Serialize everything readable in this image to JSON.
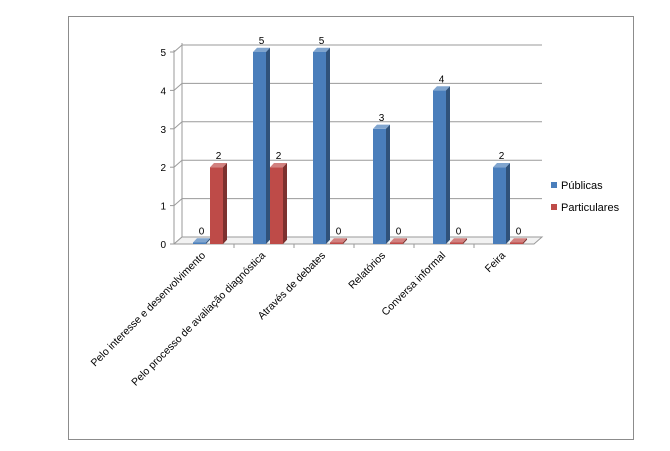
{
  "chart_data": {
    "type": "bar",
    "categories": [
      "Pelo interesse e desenvolvimento",
      "Pelo processo de avaliação diagnóstica",
      "Através de debates",
      "Relatórios",
      "Conversa informal",
      "Feira"
    ],
    "series": [
      {
        "name": "Públicas",
        "values": [
          0,
          5,
          5,
          3,
          4,
          2
        ],
        "color": "#4a7ebb"
      },
      {
        "name": "Particulares",
        "values": [
          2,
          2,
          0,
          0,
          0,
          0
        ],
        "color": "#be4b48"
      }
    ],
    "yticks": [
      "0",
      "1",
      "2",
      "3",
      "4",
      "5"
    ],
    "ylim": [
      0,
      5
    ],
    "grid": true,
    "legend_position": "right",
    "three_d": true
  }
}
